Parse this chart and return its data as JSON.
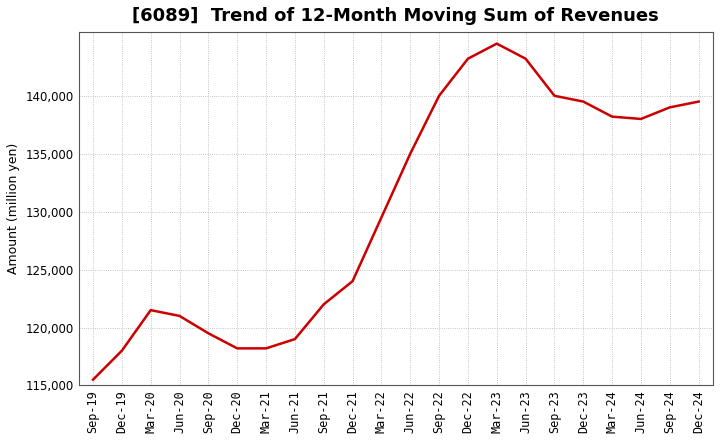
{
  "title": "[6089]  Trend of 12-Month Moving Sum of Revenues",
  "ylabel": "Amount (million yen)",
  "line_color": "#cc0000",
  "background_color": "#ffffff",
  "plot_bg_color": "#ffffff",
  "grid_color": "#aaaaaa",
  "x_labels": [
    "Sep-19",
    "Dec-19",
    "Mar-20",
    "Jun-20",
    "Sep-20",
    "Dec-20",
    "Mar-21",
    "Jun-21",
    "Sep-21",
    "Dec-21",
    "Mar-22",
    "Jun-22",
    "Sep-22",
    "Dec-22",
    "Mar-23",
    "Jun-23",
    "Sep-23",
    "Dec-23",
    "Mar-24",
    "Jun-24",
    "Sep-24",
    "Dec-24"
  ],
  "y_values": [
    115500,
    118000,
    121500,
    121000,
    119500,
    118200,
    118200,
    119000,
    122000,
    124000,
    129500,
    135000,
    140000,
    143200,
    144500,
    143200,
    140000,
    139500,
    138200,
    138000,
    139000,
    139500
  ],
  "ylim_min": 115000,
  "ylim_max": 145500,
  "yticks": [
    115000,
    120000,
    125000,
    130000,
    135000,
    140000
  ],
  "title_fontsize": 13,
  "axis_fontsize": 9,
  "tick_fontsize": 8.5,
  "line_width": 1.8
}
